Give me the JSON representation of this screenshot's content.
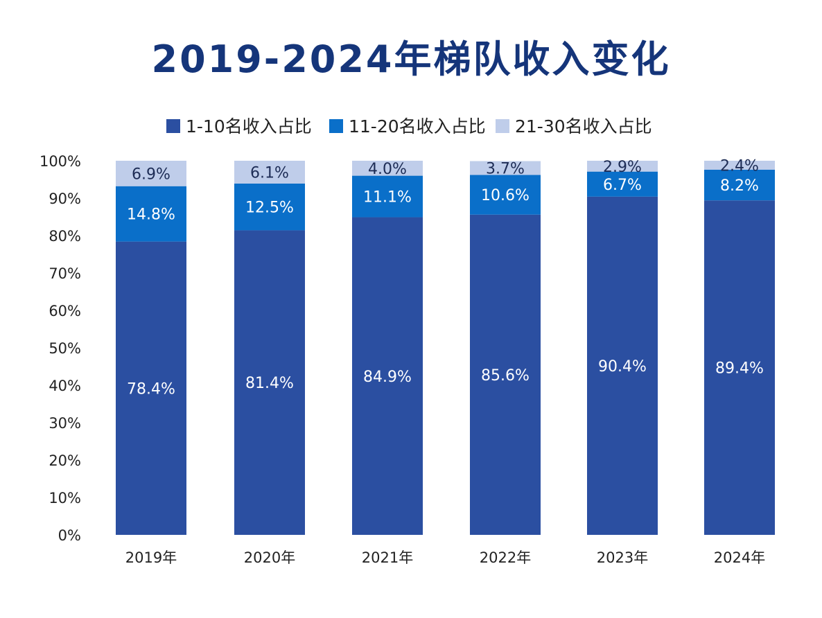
{
  "chart_data": {
    "type": "bar",
    "stacked": true,
    "title": "2019-2024年梯队收入变化",
    "categories": [
      "2019年",
      "2020年",
      "2021年",
      "2022年",
      "2023年",
      "2024年"
    ],
    "series": [
      {
        "name": "1-10名收入占比",
        "color": "#2b4fa1",
        "label_color": "#ffffff",
        "values": [
          78.4,
          81.4,
          84.9,
          85.6,
          90.4,
          89.4
        ]
      },
      {
        "name": "11-20名收入占比",
        "color": "#0a6fc9",
        "label_color": "#ffffff",
        "values": [
          14.8,
          12.5,
          11.1,
          10.6,
          6.7,
          8.2
        ]
      },
      {
        "name": "21-30名收入占比",
        "color": "#bfcdea",
        "label_color": "#1d2c55",
        "values": [
          6.9,
          6.1,
          4.0,
          3.7,
          2.9,
          2.4
        ]
      }
    ],
    "data_labels": [
      [
        "78.4%",
        "81.4%",
        "84.9%",
        "85.6%",
        "90.4%",
        "89.4%"
      ],
      [
        "14.8%",
        "12.5%",
        "11.1%",
        "10.6%",
        "6.7%",
        "8.2%"
      ],
      [
        "6.9%",
        "6.1%",
        "4.0%",
        "3.7%",
        "2.9%",
        "2.4%"
      ]
    ],
    "ylim": [
      0,
      100
    ],
    "yticks": [
      "0%",
      "10%",
      "20%",
      "30%",
      "40%",
      "50%",
      "60%",
      "70%",
      "80%",
      "90%",
      "100%"
    ],
    "legend": "top",
    "grid": false
  }
}
